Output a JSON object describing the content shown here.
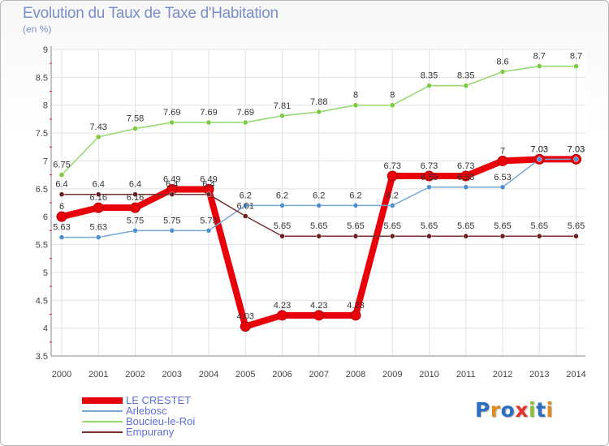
{
  "title": "Evolution du Taux de Taxe d'Habitation",
  "subtitle": "(en %)",
  "brand": {
    "text": "Proxiti",
    "colors": [
      "#2f6fc0",
      "#e08a1e",
      "#2f6fc0",
      "#e4322b",
      "#8bbf2e",
      "#2f6fc0",
      "#e08a1e"
    ]
  },
  "chart_data": {
    "type": "line",
    "title": "Evolution du Taux de Taxe d'Habitation",
    "ylabel": "(en %)",
    "xlabel": "",
    "x": [
      "2000",
      "2001",
      "2002",
      "2003",
      "2004",
      "2005",
      "2006",
      "2007",
      "2008",
      "2009",
      "2010",
      "2011",
      "2012",
      "2013",
      "2014"
    ],
    "ylim": [
      3.5,
      9
    ],
    "yticks": [
      "3.5",
      "4",
      "4.5",
      "5",
      "5.5",
      "6",
      "6.5",
      "7",
      "7.5",
      "8",
      "8.5",
      "9"
    ],
    "series": [
      {
        "name": "LE CRESTET",
        "color": "#e8000b",
        "width": 8,
        "values": [
          6,
          6.16,
          6.16,
          6.49,
          6.49,
          4.03,
          4.23,
          4.23,
          4.23,
          6.73,
          6.73,
          6.73,
          7,
          7.03,
          7.03
        ],
        "labels": [
          "6",
          "6.16",
          "6.16",
          "6.49",
          "6.49",
          "4.03",
          "4.23",
          "4.23",
          "4.23",
          "6.73",
          "6.73",
          "6.73",
          "7",
          "7.03",
          "7.03"
        ]
      },
      {
        "name": "Arlebosc",
        "color": "#73a8d6",
        "width": 1.5,
        "values": [
          5.63,
          5.63,
          5.75,
          5.75,
          5.75,
          6.2,
          6.2,
          6.2,
          6.2,
          6.2,
          6.53,
          6.53,
          6.53,
          7.03,
          7.03
        ],
        "labels": [
          "5.63",
          "5.63",
          "5.75",
          "5.75",
          "5.75",
          "6.2",
          "6.2",
          "6.2",
          "6.2",
          "6.2",
          "6.53",
          "6.53",
          "6.53",
          "7.03",
          "7.03"
        ]
      },
      {
        "name": "Boucieu-le-Roi",
        "color": "#92d86a",
        "width": 1.5,
        "values": [
          6.75,
          7.43,
          7.58,
          7.69,
          7.69,
          7.69,
          7.81,
          7.88,
          8,
          8,
          8.35,
          8.35,
          8.6,
          8.7,
          8.7
        ],
        "labels": [
          "6.75",
          "7.43",
          "7.58",
          "7.69",
          "7.69",
          "7.69",
          "7.81",
          "7.88",
          "8",
          "8",
          "8.35",
          "8.35",
          "8.6",
          "8.7",
          "8.7"
        ]
      },
      {
        "name": "Empurany",
        "color": "#7a2e30",
        "width": 1.5,
        "values": [
          6.4,
          6.4,
          6.4,
          6.4,
          6.4,
          6.01,
          5.65,
          5.65,
          5.65,
          5.65,
          5.65,
          5.65,
          5.65,
          5.65,
          5.65
        ],
        "labels": [
          "6.4",
          "6.4",
          "6.4",
          "6.4",
          "6.4",
          "6.01",
          "5.65",
          "5.65",
          "5.65",
          "5.65",
          "5.65",
          "5.65",
          "5.65",
          "5.65",
          "5.65"
        ]
      }
    ]
  }
}
